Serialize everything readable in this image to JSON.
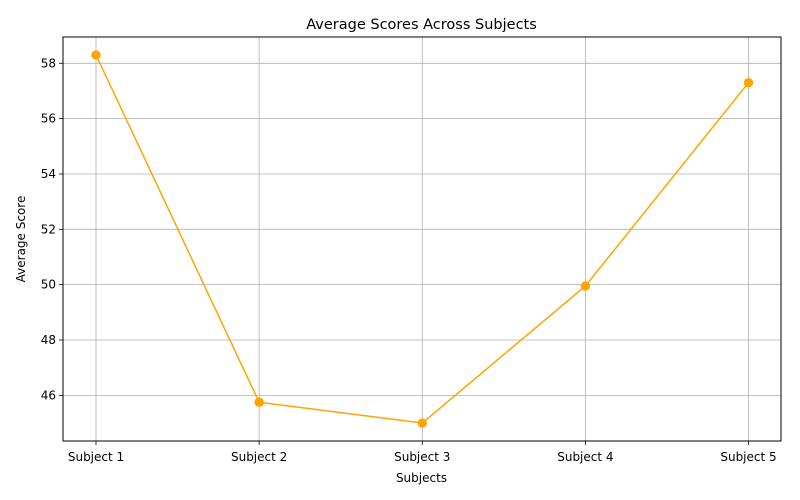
{
  "chart_data": {
    "type": "line",
    "title": "Average Scores Across Subjects",
    "xlabel": "Subjects",
    "ylabel": "Average Score",
    "categories": [
      "Subject 1",
      "Subject 2",
      "Subject 3",
      "Subject 4",
      "Subject 5"
    ],
    "series": [
      {
        "values": [
          58.3,
          45.75,
          45.0,
          49.95,
          57.3
        ],
        "color": "#ffa500",
        "marker": "circle"
      }
    ],
    "ylim": [
      44.35,
      58.95
    ],
    "yticks": [
      46,
      48,
      50,
      52,
      54,
      56,
      58
    ],
    "ytick_labels": [
      "46",
      "48",
      "50",
      "52",
      "54",
      "56",
      "58"
    ],
    "grid": true,
    "legend": "none"
  }
}
